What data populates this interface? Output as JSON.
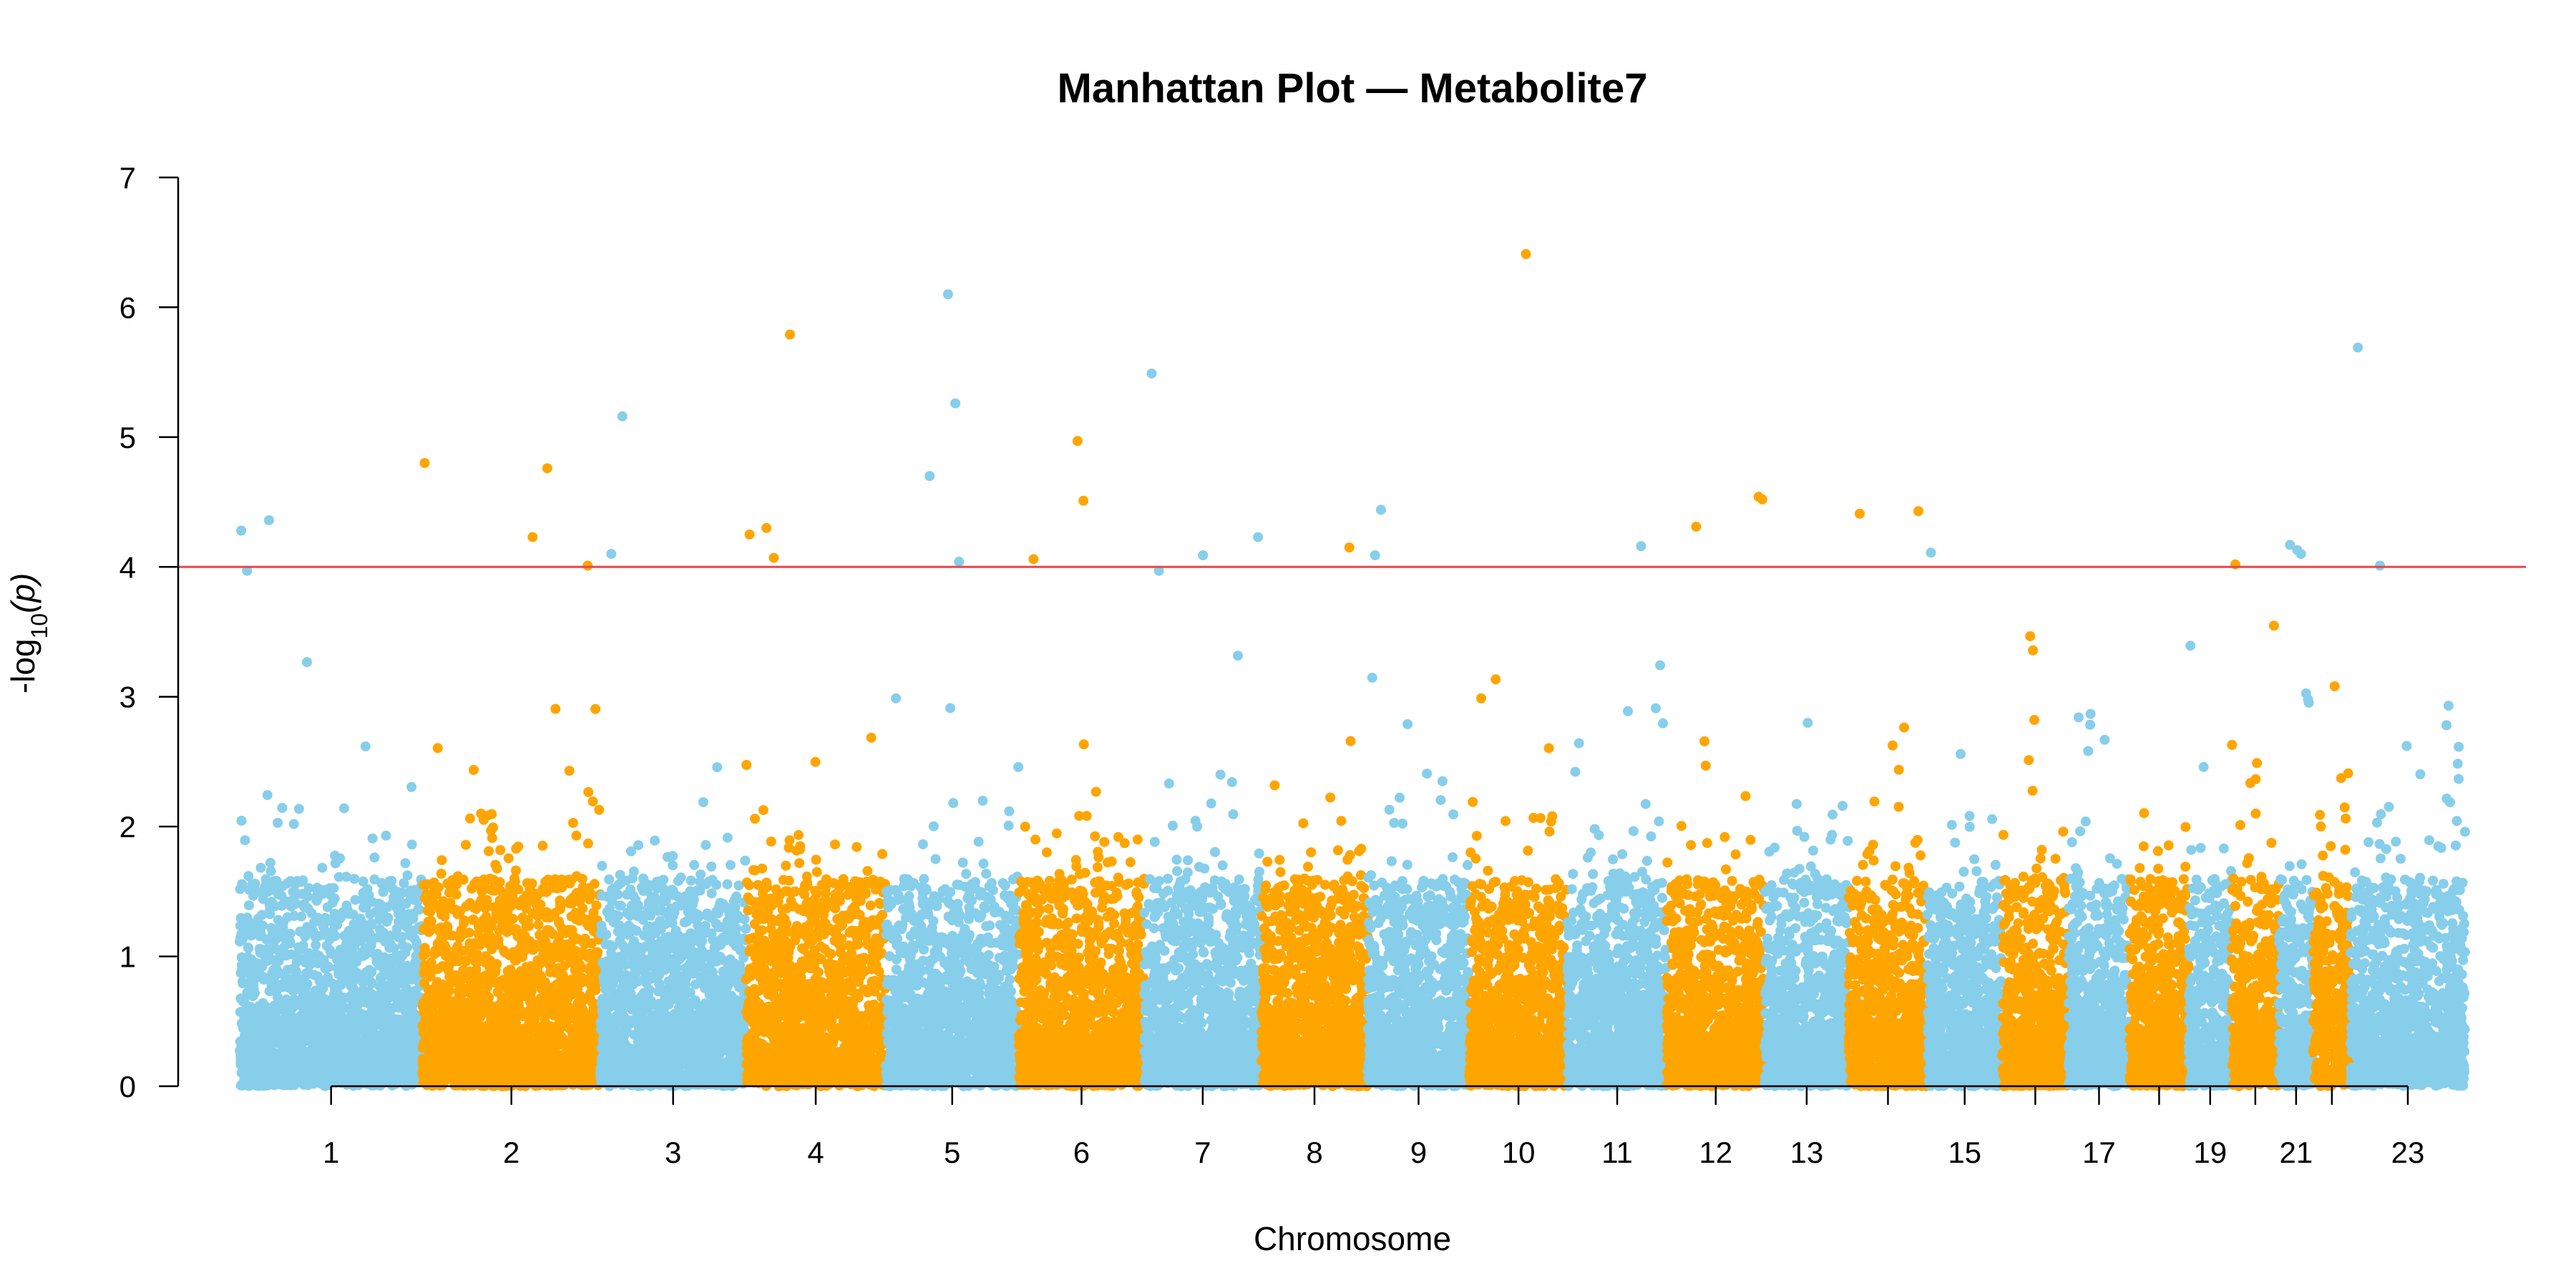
{
  "chart_data": {
    "type": "scatter",
    "title": "Manhattan Plot — Metabolite7",
    "xlabel": "Chromosome",
    "ylabel_prefix": "-log",
    "ylabel_sub": "10",
    "ylabel_suffix": "(p)",
    "ylim": [
      0,
      7
    ],
    "yticks": [
      "0",
      "1",
      "2",
      "3",
      "4",
      "5",
      "6",
      "7"
    ],
    "threshold": 4,
    "threshold_color": "#e8474b",
    "colors": {
      "odd": "#87ceeb",
      "even": "#ffa500"
    },
    "grid": false,
    "chromosomes": [
      {
        "chr": 1,
        "label": "1",
        "length": 248.9
      },
      {
        "chr": 2,
        "label": "2",
        "length": 242.2
      },
      {
        "chr": 3,
        "label": "3",
        "length": 198.3
      },
      {
        "chr": 4,
        "label": "4",
        "length": 190.2
      },
      {
        "chr": 5,
        "label": "5",
        "length": 181.5
      },
      {
        "chr": 6,
        "label": "6",
        "length": 170.8
      },
      {
        "chr": 7,
        "label": "7",
        "length": 159.3
      },
      {
        "chr": 8,
        "label": "8",
        "length": 145.1
      },
      {
        "chr": 9,
        "label": "9",
        "length": 138.4
      },
      {
        "chr": 10,
        "label": "10",
        "length": 133.8
      },
      {
        "chr": 11,
        "label": "11",
        "length": 135.1
      },
      {
        "chr": 12,
        "label": "12",
        "length": 133.3
      },
      {
        "chr": 13,
        "label": "13",
        "length": 114.4
      },
      {
        "chr": 14,
        "label": "",
        "length": 107.0
      },
      {
        "chr": 15,
        "label": "15",
        "length": 102.0
      },
      {
        "chr": 16,
        "label": "",
        "length": 90.3
      },
      {
        "chr": 17,
        "label": "17",
        "length": 83.3
      },
      {
        "chr": 18,
        "label": "",
        "length": 80.4
      },
      {
        "chr": 19,
        "label": "19",
        "length": 58.6
      },
      {
        "chr": 20,
        "label": "",
        "length": 64.4
      },
      {
        "chr": 21,
        "label": "21",
        "length": 46.7
      },
      {
        "chr": 22,
        "label": "",
        "length": 50.8
      },
      {
        "chr": 23,
        "label": "23",
        "length": 156.0
      }
    ],
    "top_hits": [
      {
        "chr": 1,
        "pos": 2,
        "y": 4.28
      },
      {
        "chr": 1,
        "pos": 40,
        "y": 4.36
      },
      {
        "chr": 1,
        "pos": 10,
        "y": 3.97
      },
      {
        "chr": 2,
        "pos": 3,
        "y": 4.8
      },
      {
        "chr": 2,
        "pos": 150,
        "y": 4.23
      },
      {
        "chr": 2,
        "pos": 170,
        "y": 4.76
      },
      {
        "chr": 2,
        "pos": 225,
        "y": 4.01
      },
      {
        "chr": 3,
        "pos": 15,
        "y": 4.1
      },
      {
        "chr": 3,
        "pos": 30,
        "y": 5.16
      },
      {
        "chr": 4,
        "pos": 5,
        "y": 4.25
      },
      {
        "chr": 4,
        "pos": 28,
        "y": 4.3
      },
      {
        "chr": 4,
        "pos": 38,
        "y": 4.07
      },
      {
        "chr": 4,
        "pos": 60,
        "y": 5.79
      },
      {
        "chr": 5,
        "pos": 60,
        "y": 4.7
      },
      {
        "chr": 5,
        "pos": 85,
        "y": 6.1
      },
      {
        "chr": 5,
        "pos": 95,
        "y": 5.26
      },
      {
        "chr": 5,
        "pos": 100,
        "y": 4.04
      },
      {
        "chr": 6,
        "pos": 20,
        "y": 4.06
      },
      {
        "chr": 6,
        "pos": 80,
        "y": 4.97
      },
      {
        "chr": 6,
        "pos": 88,
        "y": 4.51
      },
      {
        "chr": 7,
        "pos": 10,
        "y": 5.49
      },
      {
        "chr": 7,
        "pos": 20,
        "y": 3.97
      },
      {
        "chr": 7,
        "pos": 80,
        "y": 4.09
      },
      {
        "chr": 7,
        "pos": 155,
        "y": 4.23
      },
      {
        "chr": 8,
        "pos": 120,
        "y": 4.15
      },
      {
        "chr": 9,
        "pos": 10,
        "y": 4.09
      },
      {
        "chr": 9,
        "pos": 18,
        "y": 4.44
      },
      {
        "chr": 10,
        "pos": 77,
        "y": 6.41
      },
      {
        "chr": 11,
        "pos": 100,
        "y": 4.16
      },
      {
        "chr": 12,
        "pos": 40,
        "y": 4.31
      },
      {
        "chr": 12,
        "pos": 125,
        "y": 4.54
      },
      {
        "chr": 12,
        "pos": 130,
        "y": 4.52
      },
      {
        "chr": 14,
        "pos": 15,
        "y": 4.41
      },
      {
        "chr": 14,
        "pos": 95,
        "y": 4.43
      },
      {
        "chr": 15,
        "pos": 5,
        "y": 4.11
      },
      {
        "chr": 20,
        "pos": 5,
        "y": 4.02
      },
      {
        "chr": 21,
        "pos": 15,
        "y": 4.17
      },
      {
        "chr": 21,
        "pos": 25,
        "y": 4.13
      },
      {
        "chr": 21,
        "pos": 30,
        "y": 4.1
      },
      {
        "chr": 23,
        "pos": 10,
        "y": 5.69
      },
      {
        "chr": 23,
        "pos": 40,
        "y": 4.01
      }
    ]
  }
}
